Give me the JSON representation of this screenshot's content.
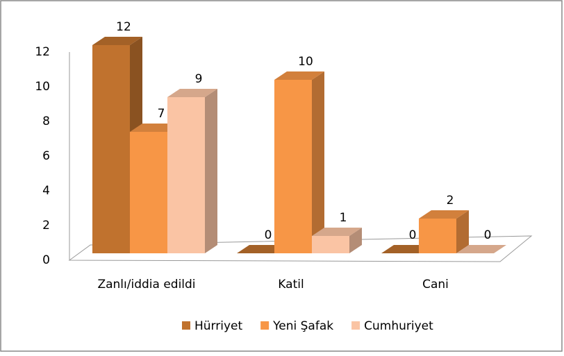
{
  "chart_data": {
    "type": "bar3d",
    "categories": [
      "Zanlı/iddia edildi",
      "Katil",
      "Cani"
    ],
    "series": [
      {
        "name": "Hürriyet",
        "color": "#c0722e",
        "values": [
          12,
          0,
          0
        ]
      },
      {
        "name": "Yeni Şafak",
        "color": "#f79646",
        "values": [
          7,
          10,
          2
        ]
      },
      {
        "name": "Cumhuriyet",
        "color": "#fac4a4",
        "values": [
          9,
          1,
          0
        ]
      }
    ],
    "ylim": [
      0,
      12
    ],
    "yticks": [
      0,
      2,
      4,
      6,
      8,
      10,
      12
    ],
    "legend": "bottom"
  }
}
